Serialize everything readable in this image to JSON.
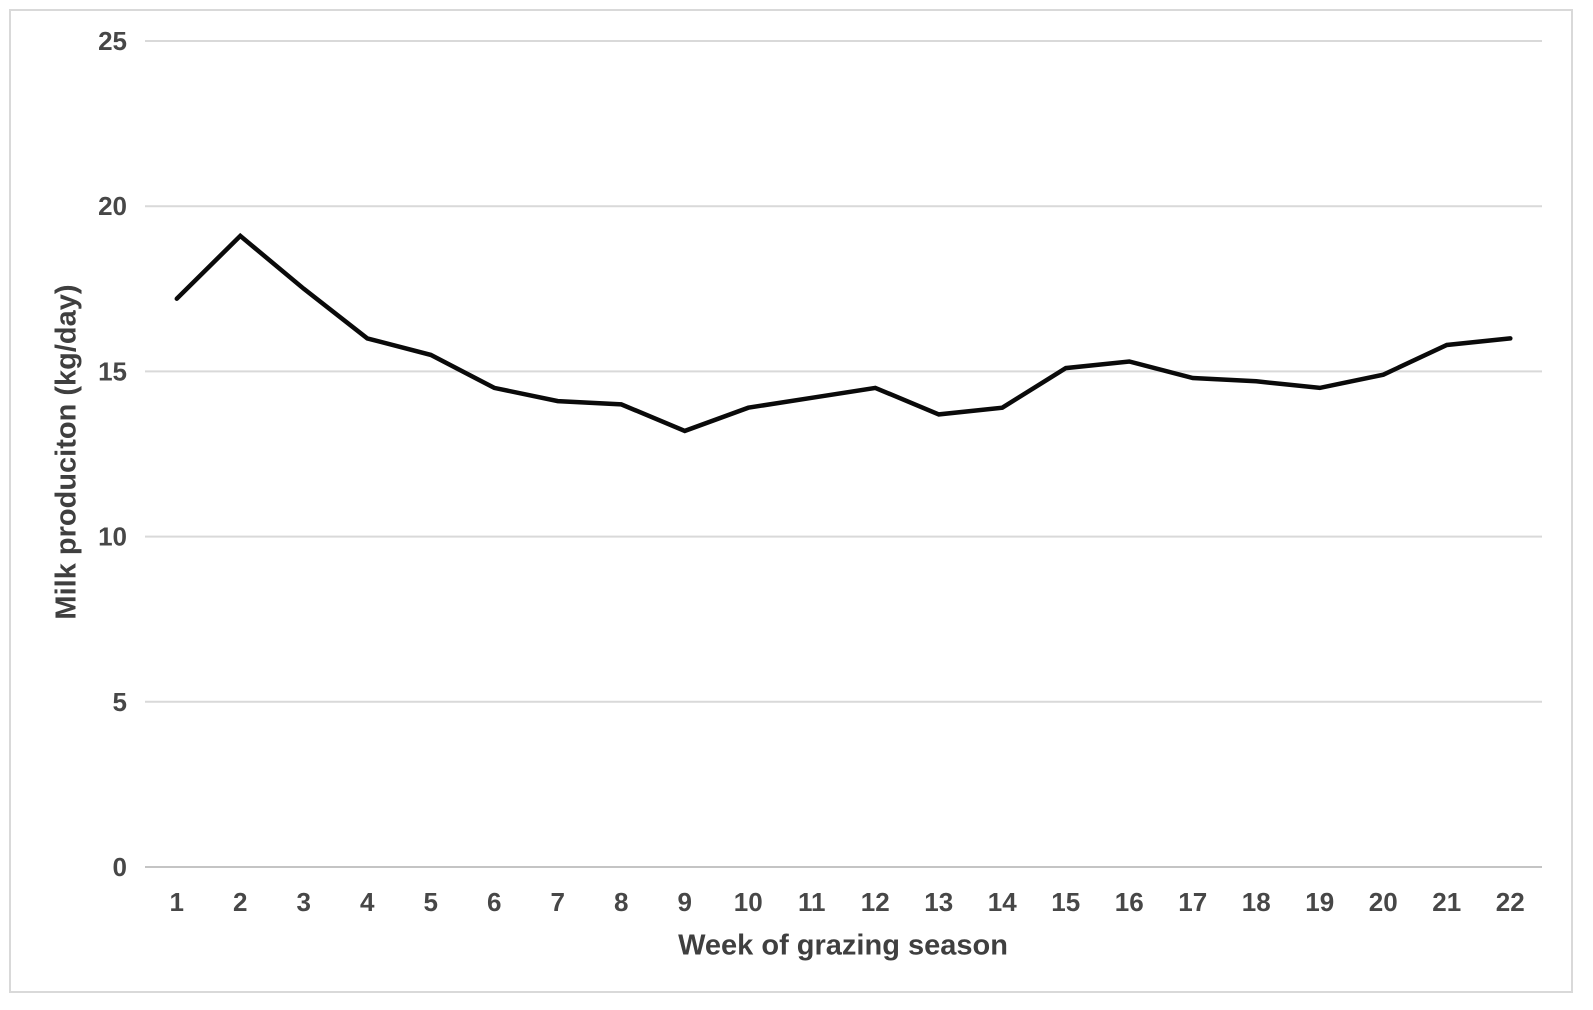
{
  "chart_data": {
    "type": "line",
    "title": "",
    "xlabel": "Week of grazing season",
    "ylabel": "Milk produciton (kg/day)",
    "categories": [
      1,
      2,
      3,
      4,
      5,
      6,
      7,
      8,
      9,
      10,
      11,
      12,
      13,
      14,
      15,
      16,
      17,
      18,
      19,
      20,
      21,
      22
    ],
    "series": [
      {
        "name": "Milk production",
        "values": [
          17.2,
          19.1,
          17.5,
          16.0,
          15.5,
          14.5,
          14.1,
          14.0,
          13.2,
          13.9,
          14.2,
          14.5,
          13.7,
          13.9,
          15.1,
          15.3,
          14.8,
          14.7,
          14.5,
          14.9,
          15.8,
          16.0
        ]
      }
    ],
    "ylim": [
      0,
      25
    ],
    "y_ticks": [
      0,
      5,
      10,
      15,
      20,
      25
    ],
    "grid": "horizontal",
    "legend": "none",
    "colors": {
      "line": "#0a0a0a",
      "gridline": "#d9d9d9",
      "axis_line": "#c4c4c4",
      "tick_label": "#474747",
      "axis_title": "#3f3f3f",
      "figure_border": "#d9d9d9",
      "background": "#ffffff"
    }
  }
}
